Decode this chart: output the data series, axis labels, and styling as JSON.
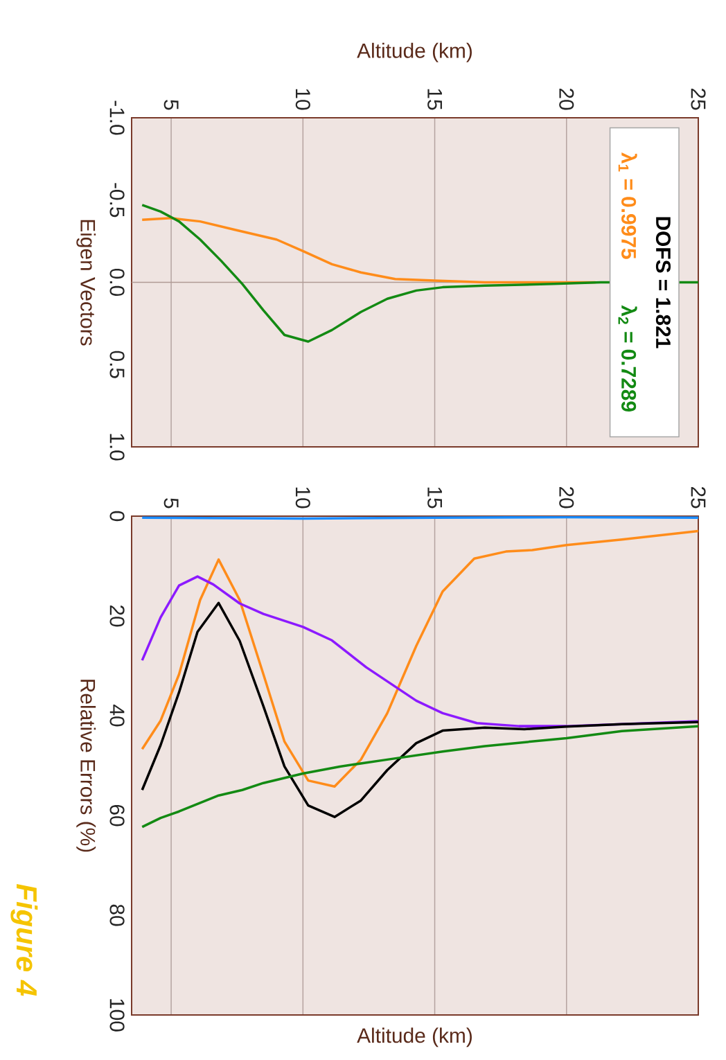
{
  "chart_data": [
    {
      "type": "line",
      "xlabel": "Altitude (km)",
      "ylabel": "Eigen Vectors",
      "xlim": [
        3.5,
        25
      ],
      "xticks": [
        5,
        10,
        15,
        20,
        25
      ],
      "ylim": [
        1.0,
        -1.0
      ],
      "yticks": [
        {
          "value": -1.0,
          "label": "-1.0"
        },
        {
          "value": -0.5,
          "label": "-0.5"
        },
        {
          "value": 0.0,
          "label": "0.0"
        },
        {
          "value": 0.5,
          "label": "0.5"
        },
        {
          "value": 1.0,
          "label": "1.0"
        }
      ],
      "grid": "x",
      "legend": "right",
      "annotations": [
        "DOFS = 1.821"
      ],
      "ref_lines": [
        {
          "axis": "y",
          "value": 0,
          "color": "#b09a94"
        }
      ],
      "series": [
        {
          "name": "λ$_{1}$ = 0.9975",
          "color": "#ff8c1a",
          "x": [
            3.9,
            5.0,
            6.1,
            7.4,
            9.0,
            10.0,
            11.1,
            12.2,
            13.5,
            15.0,
            16.9,
            19.5,
            21.1
          ],
          "values": [
            -0.38,
            -0.39,
            -0.37,
            -0.32,
            -0.26,
            -0.19,
            -0.11,
            -0.06,
            -0.02,
            -0.01,
            0.0,
            0.0,
            0.0
          ]
        },
        {
          "name": "λ$_{2}$ = 0.7289",
          "color": "#138a13",
          "x": [
            3.9,
            4.6,
            5.3,
            6.1,
            6.9,
            7.7,
            8.5,
            9.3,
            10.2,
            11.1,
            12.2,
            13.2,
            14.3,
            15.3,
            16.9,
            19.5,
            21.3,
            25.0
          ],
          "values": [
            -0.47,
            -0.43,
            -0.37,
            -0.26,
            -0.13,
            0.01,
            0.17,
            0.32,
            0.36,
            0.29,
            0.18,
            0.1,
            0.05,
            0.03,
            0.02,
            0.01,
            0.0,
            0.0
          ]
        }
      ]
    },
    {
      "type": "line",
      "xlabel": "Altitude (km)",
      "ylabel": "Relative Errors (%)",
      "xlim": [
        3.5,
        25
      ],
      "xticks": [
        5,
        10,
        15,
        20,
        25
      ],
      "ylim": [
        100,
        0
      ],
      "yticks": [
        0,
        20,
        40,
        60,
        80,
        100
      ],
      "grid": "x",
      "annotations": [
        "Figure 4"
      ],
      "series": [
        {
          "color": "#1a8cff",
          "x": [
            3.9,
            10.0,
            15.0,
            20.0,
            25.0
          ],
          "values": [
            0.3,
            0.5,
            0.3,
            0.2,
            0.3
          ]
        },
        {
          "color": "#ff8c1a",
          "x": [
            3.9,
            4.6,
            5.3,
            6.1,
            6.8,
            7.6,
            8.5,
            9.3,
            10.2,
            11.2,
            12.2,
            13.2,
            14.3,
            15.3,
            16.5,
            17.7,
            18.7,
            20.0,
            22.1,
            25.0
          ],
          "values": [
            46.7,
            41.0,
            31.7,
            16.8,
            8.7,
            16.8,
            31.7,
            45.2,
            53.0,
            54.2,
            48.8,
            39.5,
            26.0,
            15.1,
            8.5,
            7.1,
            6.8,
            5.8,
            4.7,
            3.0
          ]
        },
        {
          "color": "#8c1aff",
          "x": [
            3.9,
            4.6,
            5.3,
            6.0,
            6.6,
            7.6,
            8.5,
            10.0,
            11.1,
            12.4,
            14.3,
            15.3,
            16.6,
            18.2,
            20.0,
            22.1,
            25.0
          ],
          "values": [
            28.9,
            20.3,
            13.9,
            12.1,
            13.7,
            17.5,
            19.6,
            22.2,
            24.9,
            30.3,
            37.0,
            39.5,
            41.5,
            42.1,
            42.1,
            41.7,
            41.1
          ]
        },
        {
          "color": "#000000",
          "x": [
            3.9,
            4.6,
            5.3,
            6.0,
            6.8,
            7.6,
            8.5,
            9.3,
            10.2,
            11.2,
            12.2,
            13.2,
            14.3,
            15.3,
            16.9,
            18.4,
            20.0,
            22.1,
            25.0
          ],
          "values": [
            54.9,
            45.9,
            35.3,
            23.2,
            17.4,
            25.0,
            38.1,
            50.2,
            58.0,
            60.3,
            57.0,
            50.9,
            45.5,
            43.0,
            42.4,
            42.7,
            42.2,
            41.7,
            41.3
          ]
        },
        {
          "color": "#138a13",
          "x": [
            3.9,
            4.6,
            5.3,
            6.8,
            7.7,
            8.5,
            10.0,
            11.4,
            13.2,
            15.3,
            16.9,
            20.0,
            22.1,
            25.0
          ],
          "values": [
            62.3,
            60.5,
            59.2,
            56.0,
            54.9,
            53.5,
            51.6,
            50.2,
            48.8,
            47.2,
            46.1,
            44.5,
            43.1,
            42.1
          ]
        }
      ]
    }
  ]
}
